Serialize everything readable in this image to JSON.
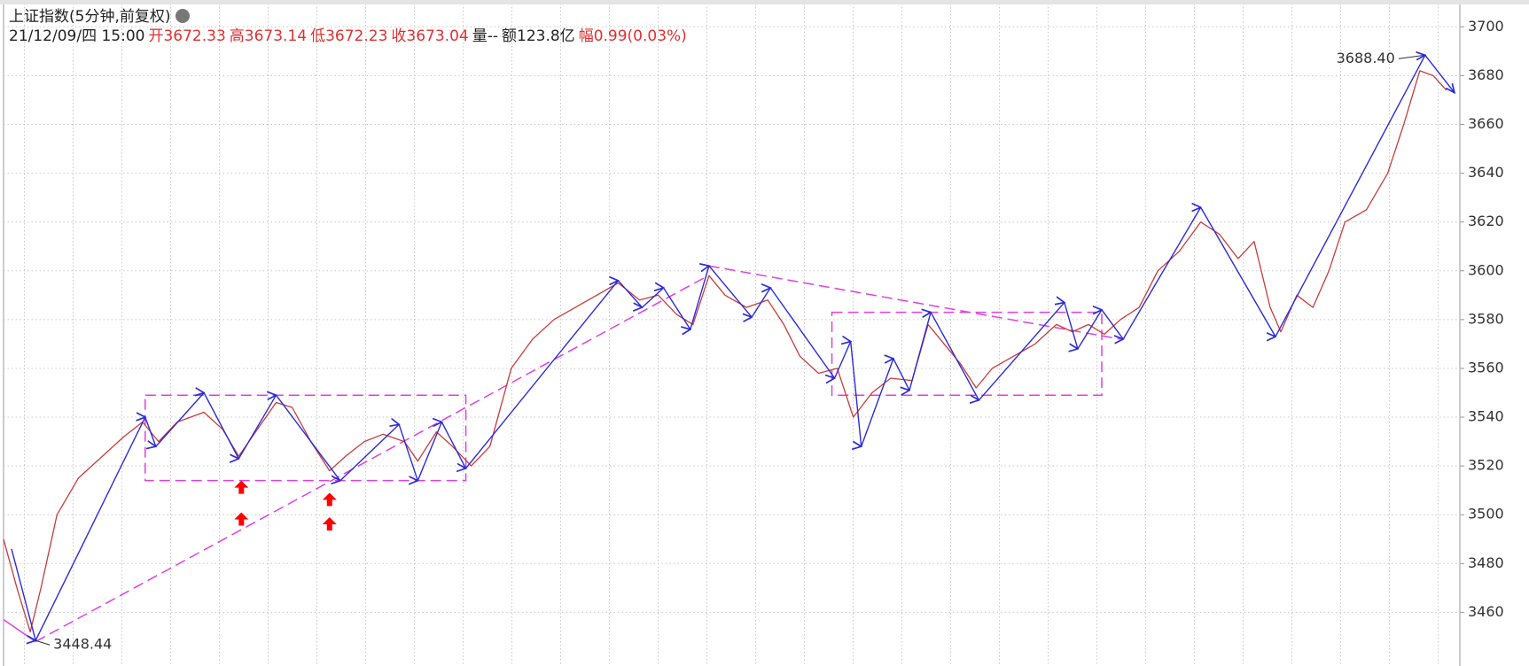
{
  "header": {
    "title": "上证指数(5分钟,前复权)",
    "date": "21/12/09/四 15:00",
    "quotes": [
      {
        "label": "开",
        "value": "3672.33",
        "color": "#e03030"
      },
      {
        "label": "高",
        "value": "3673.14",
        "color": "#e03030"
      },
      {
        "label": "低",
        "value": "3672.23",
        "color": "#e03030"
      },
      {
        "label": "收",
        "value": "3673.04",
        "color": "#e03030"
      },
      {
        "label": "量",
        "value": "--",
        "color": "#222222"
      },
      {
        "label": "额",
        "value": "123.8亿",
        "color": "#222222"
      },
      {
        "label": "幅",
        "value": "0.99(0.03%)",
        "color": "#e03030"
      }
    ]
  },
  "chart_data": {
    "type": "line",
    "xlim": [
      0,
      545
    ],
    "ylim": [
      3438,
      3711
    ],
    "yticks": [
      3460,
      3480,
      3500,
      3520,
      3540,
      3560,
      3580,
      3600,
      3620,
      3640,
      3660,
      3680,
      3700
    ],
    "grid": true,
    "series": [
      {
        "color": "#c83c3c",
        "x": [
          0,
          5,
          10,
          14,
          20,
          28,
          35,
          45,
          52,
          58,
          65,
          75,
          82,
          88,
          95,
          102,
          108,
          115,
          122,
          128,
          135,
          142,
          150,
          155,
          162,
          168,
          175,
          182,
          190,
          198,
          206,
          214,
          222,
          230,
          238,
          245,
          252,
          258,
          264,
          270,
          278,
          286,
          292,
          298,
          305,
          312,
          318,
          325,
          332,
          340,
          346,
          352,
          358,
          364,
          370,
          378,
          386,
          394,
          400,
          406,
          412,
          418,
          425,
          432,
          440,
          448,
          455,
          462,
          468,
          474,
          478,
          484,
          490,
          496,
          502,
          510,
          518,
          524,
          530,
          535,
          540
        ],
        "values": [
          3490,
          3470,
          3452,
          3470,
          3500,
          3515,
          3522,
          3532,
          3538,
          3530,
          3538,
          3542,
          3535,
          3524,
          3535,
          3546,
          3544,
          3530,
          3518,
          3524,
          3530,
          3533,
          3530,
          3522,
          3534,
          3528,
          3520,
          3528,
          3560,
          3572,
          3580,
          3585,
          3590,
          3595,
          3588,
          3590,
          3582,
          3578,
          3598,
          3590,
          3585,
          3588,
          3578,
          3565,
          3558,
          3560,
          3540,
          3550,
          3556,
          3555,
          3578,
          3570,
          3562,
          3552,
          3560,
          3565,
          3570,
          3578,
          3575,
          3578,
          3574,
          3580,
          3585,
          3600,
          3608,
          3620,
          3615,
          3605,
          3612,
          3585,
          3575,
          3590,
          3585,
          3600,
          3620,
          3625,
          3640,
          3660,
          3682,
          3680,
          3674
        ]
      },
      {
        "color": "#2b2bd9",
        "arrows": true,
        "x": [
          3,
          12,
          53,
          57,
          75,
          88,
          102,
          126,
          148,
          155,
          164,
          173,
          230,
          239,
          247,
          257,
          264,
          280,
          287,
          311,
          317,
          321,
          333,
          339,
          347,
          365,
          397,
          402,
          411,
          419,
          448,
          476,
          532,
          543
        ],
        "values": [
          3486,
          3448.44,
          3540,
          3528,
          3550,
          3523,
          3549,
          3514,
          3537,
          3514,
          3538,
          3519,
          3596,
          3585,
          3593,
          3576,
          3602,
          3581,
          3593,
          3556,
          3571,
          3528,
          3564,
          3551,
          3583,
          3547,
          3587,
          3568,
          3584,
          3572,
          3626,
          3573,
          3688.4,
          3673
        ]
      }
    ],
    "accent_color": "#e040e0",
    "ranges": [
      {
        "x": [
          53,
          173
        ],
        "y": [
          3514,
          3549
        ]
      },
      {
        "x": [
          310,
          411
        ],
        "y": [
          3549,
          3583
        ]
      }
    ],
    "trendlines": [
      {
        "x": [
          0,
          12
        ],
        "y": [
          3457,
          3448
        ]
      },
      {
        "x": [
          12,
          262
        ],
        "y": [
          3448,
          3597
        ]
      },
      {
        "x": [
          264,
          418
        ],
        "y": [
          3602,
          3572
        ]
      }
    ],
    "markers": {
      "color": "#ff0000",
      "x": [
        89,
        89,
        122,
        122
      ],
      "y": [
        3514,
        3501,
        3509,
        3499
      ]
    },
    "annotations": [
      {
        "x": 12,
        "value": 3448.44,
        "label": "3448.44"
      },
      {
        "x": 532,
        "value": 3688.4,
        "label": "3688.40"
      }
    ]
  }
}
